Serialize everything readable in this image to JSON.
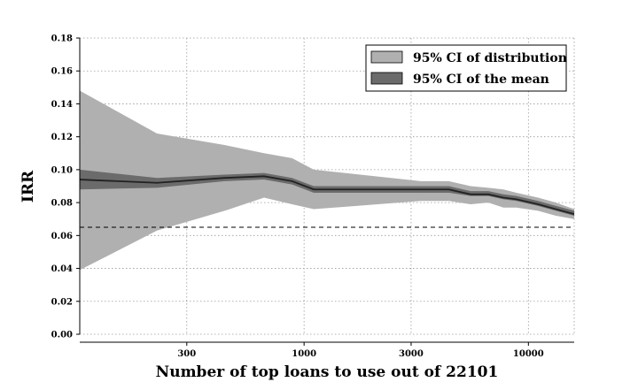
{
  "chart_data": {
    "type": "area",
    "xscale": "log",
    "xlabel": "Number of top loans to use out of 22101",
    "ylabel": "IRR",
    "xlim": [
      100,
      16000
    ],
    "ylim": [
      0,
      0.18
    ],
    "xticks": [
      300,
      1000,
      3000,
      10000
    ],
    "xtick_labels": [
      "300",
      "1000",
      "3000",
      "10000"
    ],
    "yticks": [
      0,
      0.02,
      0.04,
      0.06,
      0.08,
      0.1,
      0.12,
      0.14,
      0.16,
      0.18
    ],
    "ytick_labels": [
      "0.00",
      "0.02",
      "0.04",
      "0.06",
      "0.08",
      "0.10",
      "0.12",
      "0.14",
      "0.16",
      "0.18"
    ],
    "grid": true,
    "legend_position": "top-right",
    "reference_line": {
      "y": 0.065,
      "style": "dashed",
      "color": "#000000"
    },
    "x": [
      100,
      221,
      442,
      663,
      884,
      1105,
      3315,
      4420,
      5525,
      6630,
      7735,
      8840,
      11050,
      13260,
      16000
    ],
    "mean": [
      0.094,
      0.092,
      0.095,
      0.096,
      0.093,
      0.088,
      0.088,
      0.088,
      0.085,
      0.085,
      0.083,
      0.082,
      0.079,
      0.076,
      0.073
    ],
    "series": [
      {
        "name": "95% CI of distribution",
        "color": "#b0b0b0",
        "lower": [
          0.039,
          0.063,
          0.075,
          0.083,
          0.079,
          0.076,
          0.081,
          0.081,
          0.079,
          0.08,
          0.077,
          0.077,
          0.075,
          0.072,
          0.07
        ],
        "upper": [
          0.148,
          0.122,
          0.115,
          0.11,
          0.107,
          0.1,
          0.093,
          0.093,
          0.09,
          0.089,
          0.088,
          0.086,
          0.083,
          0.08,
          0.076
        ]
      },
      {
        "name": "95% CI of the mean",
        "color": "#6b6b6b",
        "lower": [
          0.088,
          0.089,
          0.093,
          0.094,
          0.091,
          0.086,
          0.086,
          0.086,
          0.084,
          0.084,
          0.082,
          0.081,
          0.078,
          0.075,
          0.072
        ],
        "upper": [
          0.1,
          0.095,
          0.097,
          0.098,
          0.095,
          0.09,
          0.09,
          0.09,
          0.087,
          0.087,
          0.085,
          0.084,
          0.081,
          0.078,
          0.075
        ]
      }
    ],
    "line_color": "#222222"
  }
}
